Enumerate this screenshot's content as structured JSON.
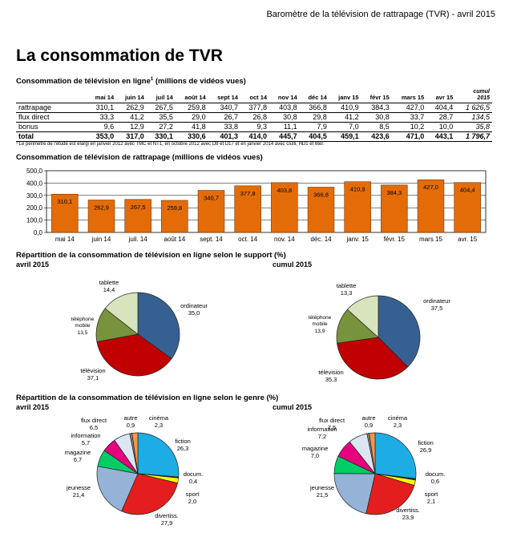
{
  "header": {
    "report_title": "Baromètre de la télévision de rattrapage (TVR) - avril 2015"
  },
  "page_title": "La consommation de TVR",
  "table": {
    "title": "Consommation de télévision en ligne",
    "title_sup": "1",
    "title_unit": " (millions de vidéos vues)",
    "columns": [
      "mai 14",
      "juin 14",
      "juil 14",
      "août 14",
      "sept 14",
      "oct 14",
      "nov 14",
      "déc 14",
      "janv 15",
      "févr 15",
      "mars 15",
      "avr 15"
    ],
    "cumul_label": "cumul",
    "cumul_year": "2015",
    "rows": [
      {
        "label": "rattrapage",
        "values": [
          "310,1",
          "262,9",
          "267,5",
          "259,8",
          "340,7",
          "377,8",
          "403,8",
          "366,8",
          "410,9",
          "384,3",
          "427,0",
          "404,4"
        ],
        "cumul": "1 626,5"
      },
      {
        "label": "flux direct",
        "values": [
          "33,3",
          "41,2",
          "35,5",
          "29,0",
          "26,7",
          "26,8",
          "30,8",
          "29,8",
          "41,2",
          "30,8",
          "33,7",
          "28,7"
        ],
        "cumul": "134,5"
      },
      {
        "label": "bonus",
        "values": [
          "9,6",
          "12,9",
          "27,2",
          "41,8",
          "33,8",
          "9,3",
          "11,1",
          "7,9",
          "7,0",
          "8,5",
          "10,2",
          "10,0"
        ],
        "cumul": "35,8"
      },
      {
        "label": "total",
        "values": [
          "353,0",
          "317,0",
          "330,1",
          "330,6",
          "401,3",
          "414,0",
          "445,7",
          "404,5",
          "459,1",
          "423,6",
          "471,0",
          "443,1"
        ],
        "cumul": "1 796,7"
      }
    ],
    "footnote": "¹ Le périmètre de l'étude est élargi en janvier 2012 avec TMC et NT1, en octobre 2012 avec D8 et D17 et en janvier 2014 avec Gulli, HD1 et 6ter."
  },
  "chart_data": [
    {
      "type": "bar",
      "title": "Consommation de télévision de rattrapage (millions de vidéos vues)",
      "categories": [
        "mai 14",
        "juin 14",
        "juil. 14",
        "août 14",
        "sept. 14",
        "oct. 14",
        "nov. 14",
        "déc. 14",
        "janv. 15",
        "févr. 15",
        "mars 15",
        "avr. 15"
      ],
      "values": [
        310.1,
        262.9,
        267.5,
        259.8,
        340.7,
        377.8,
        403.8,
        366.8,
        410.9,
        384.3,
        427.0,
        404.4
      ],
      "value_labels": [
        "310,1",
        "262,9",
        "267,5",
        "259,8",
        "340,7",
        "377,8",
        "403,8",
        "366,8",
        "410,9",
        "384,3",
        "427,0",
        "404,4"
      ],
      "ylim": [
        0,
        500
      ],
      "yticks": [
        "0,0",
        "100,0",
        "200,0",
        "300,0",
        "400,0",
        "500,0"
      ],
      "color": "#E36C09",
      "grid": true
    },
    {
      "type": "pie",
      "section_title": "Répartition de la consommation de télévision en ligne selon le support (%)",
      "title": "avril 2015",
      "slices": [
        {
          "label": "ordinateur",
          "value": 35.0,
          "text": "35,0",
          "color": "#376092"
        },
        {
          "label": "télévision",
          "value": 37.1,
          "text": "37,1",
          "color": "#C00000"
        },
        {
          "label": "téléphone mobile",
          "value": 13.5,
          "text": "13,5",
          "color": "#77933C"
        },
        {
          "label": "tablette",
          "value": 14.4,
          "text": "14,4",
          "color": "#D7E4BD"
        }
      ]
    },
    {
      "type": "pie",
      "title": "cumul 2015",
      "slices": [
        {
          "label": "ordinateur",
          "value": 37.5,
          "text": "37,5",
          "color": "#376092"
        },
        {
          "label": "télévision",
          "value": 35.3,
          "text": "35,3",
          "color": "#C00000"
        },
        {
          "label": "téléphone mobile",
          "value": 13.9,
          "text": "13,9",
          "color": "#77933C"
        },
        {
          "label": "tablette",
          "value": 13.3,
          "text": "13,3",
          "color": "#D7E4BD"
        }
      ]
    },
    {
      "type": "pie",
      "section_title": "Répartition de la consommation de télévision en ligne selon le genre (%)",
      "title": "avril 2015",
      "slices": [
        {
          "label": "fiction",
          "value": 26.3,
          "text": "26,3",
          "color": "#1CADE4"
        },
        {
          "label": "docum.",
          "value": 0.4,
          "text": "0,4",
          "color": "#1F3864"
        },
        {
          "label": "sport",
          "value": 2.0,
          "text": "2,0",
          "color": "#FFFF00"
        },
        {
          "label": "divertiss.",
          "value": 27.9,
          "text": "27,9",
          "color": "#E41E1E"
        },
        {
          "label": "jeunesse",
          "value": 21.4,
          "text": "21,4",
          "color": "#95B3D7"
        },
        {
          "label": "magazine",
          "value": 6.7,
          "text": "6,7",
          "color": "#00CC66"
        },
        {
          "label": "information",
          "value": 5.7,
          "text": "5,7",
          "color": "#E6007E"
        },
        {
          "label": "flux direct",
          "value": 6.5,
          "text": "6,5",
          "color": "#DCE6F2"
        },
        {
          "label": "autre",
          "value": 0.9,
          "text": "0,9",
          "color": "#7F7F7F"
        },
        {
          "label": "cinéma",
          "value": 2.3,
          "text": "2,3",
          "color": "#F79646"
        }
      ]
    },
    {
      "type": "pie",
      "title": "cumul 2015",
      "slices": [
        {
          "label": "fiction",
          "value": 26.9,
          "text": "26,9",
          "color": "#1CADE4"
        },
        {
          "label": "docum.",
          "value": 0.6,
          "text": "0,6",
          "color": "#1F3864"
        },
        {
          "label": "sport",
          "value": 2.1,
          "text": "2,1",
          "color": "#FFFF00"
        },
        {
          "label": "divertiss.",
          "value": 23.9,
          "text": "23,9",
          "color": "#E41E1E"
        },
        {
          "label": "jeunesse",
          "value": 21.5,
          "text": "21,5",
          "color": "#95B3D7"
        },
        {
          "label": "magazine",
          "value": 7.0,
          "text": "7,0",
          "color": "#00CC66"
        },
        {
          "label": "information",
          "value": 7.2,
          "text": "7,2",
          "color": "#E6007E"
        },
        {
          "label": "flux direct",
          "value": 7.5,
          "text": "7,5",
          "color": "#DCE6F2"
        },
        {
          "label": "autre",
          "value": 0.9,
          "text": "0,9",
          "color": "#7F7F7F"
        },
        {
          "label": "cinéma",
          "value": 2.3,
          "text": "2,3",
          "color": "#F79646"
        }
      ]
    }
  ]
}
